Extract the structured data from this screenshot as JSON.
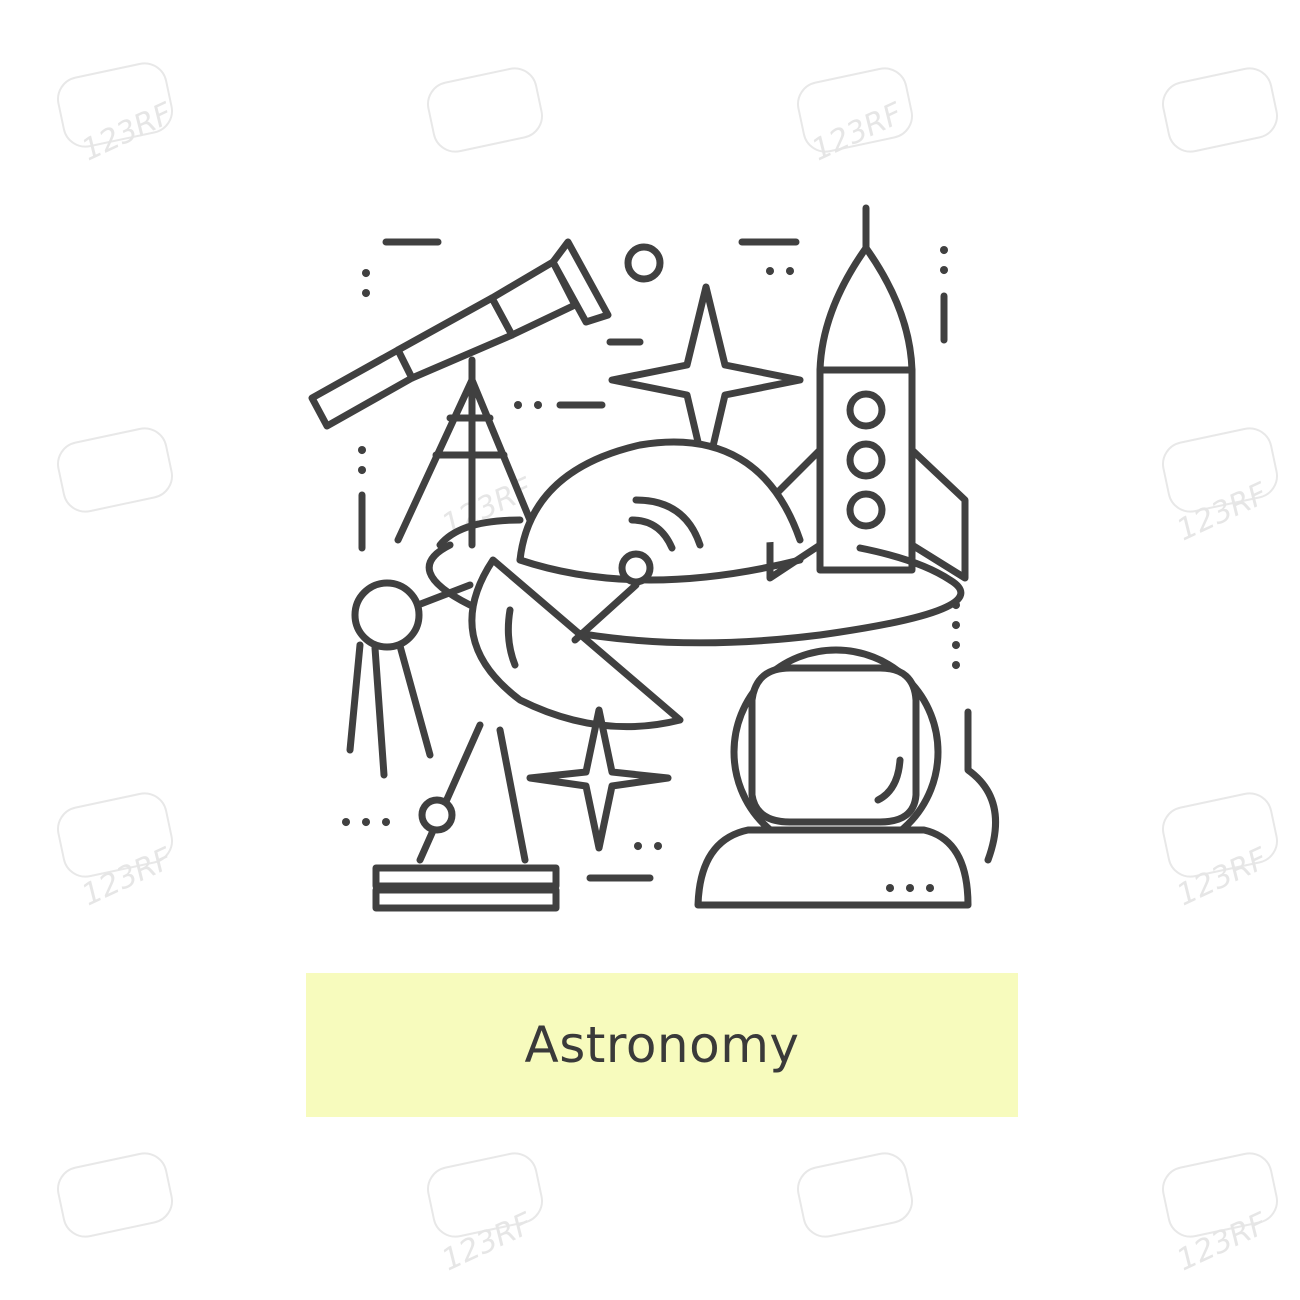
{
  "caption": {
    "title": "Astronomy",
    "band_color": "#f7fbbd"
  },
  "illustration": {
    "stroke_color": "#404040",
    "objects": [
      "telescope-icon",
      "star-icon",
      "rocket-icon",
      "planet-icon",
      "satellite-dish-icon",
      "sputnik-icon",
      "astronaut-helmet-icon"
    ]
  },
  "watermark": {
    "text": "123RF",
    "color": "#e6e6e6"
  }
}
